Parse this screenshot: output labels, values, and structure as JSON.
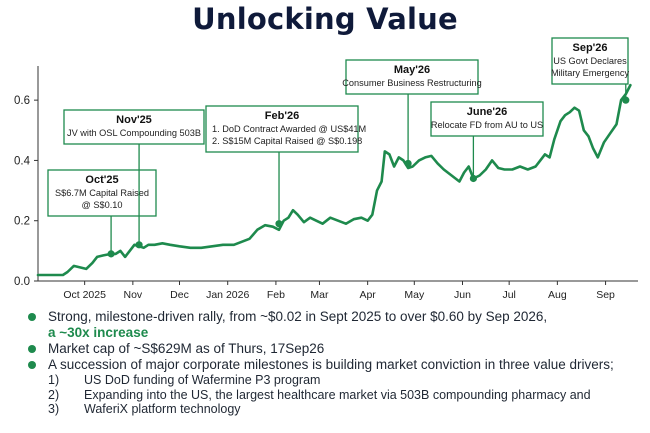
{
  "title": "Unlocking Value",
  "accent_color": "#1e8a4d",
  "chart_data": {
    "type": "line",
    "title": "Unlocking Value",
    "xlabel": "",
    "ylabel": "",
    "ylim": [
      0,
      0.7
    ],
    "yticks": [
      "0.0",
      "0.2",
      "0.4",
      "0.6"
    ],
    "xticks": [
      "Oct 2025",
      "Nov",
      "Dec",
      "Jan 2026",
      "Feb",
      "Mar",
      "Apr",
      "May",
      "Jun",
      "Jul",
      "Aug",
      "Sep"
    ],
    "grid": false,
    "series": [
      {
        "points": [
          [
            "2025-09-01",
            0.02
          ],
          [
            "2025-09-10",
            0.02
          ],
          [
            "2025-09-17",
            0.02
          ],
          [
            "2025-09-20",
            0.03
          ],
          [
            "2025-09-24",
            0.05
          ],
          [
            "2025-09-28",
            0.045
          ],
          [
            "2025-10-02",
            0.04
          ],
          [
            "2025-10-06",
            0.06
          ],
          [
            "2025-10-09",
            0.08
          ],
          [
            "2025-10-13",
            0.085
          ],
          [
            "2025-10-18",
            0.09
          ],
          [
            "2025-10-21",
            0.09
          ],
          [
            "2025-10-24",
            0.1
          ],
          [
            "2025-10-27",
            0.08
          ],
          [
            "2025-10-30",
            0.1
          ],
          [
            "2025-11-02",
            0.12
          ],
          [
            "2025-11-05",
            0.115
          ],
          [
            "2025-11-08",
            0.11
          ],
          [
            "2025-11-11",
            0.12
          ],
          [
            "2025-11-15",
            0.12
          ],
          [
            "2025-11-20",
            0.125
          ],
          [
            "2025-11-25",
            0.12
          ],
          [
            "2025-12-01",
            0.115
          ],
          [
            "2025-12-08",
            0.11
          ],
          [
            "2025-12-15",
            0.11
          ],
          [
            "2025-12-22",
            0.115
          ],
          [
            "2025-12-29",
            0.12
          ],
          [
            "2026-01-05",
            0.12
          ],
          [
            "2026-01-10",
            0.13
          ],
          [
            "2026-01-15",
            0.14
          ],
          [
            "2026-01-20",
            0.17
          ],
          [
            "2026-01-25",
            0.185
          ],
          [
            "2026-01-30",
            0.18
          ],
          [
            "2026-02-03",
            0.17
          ],
          [
            "2026-02-06",
            0.2
          ],
          [
            "2026-02-09",
            0.21
          ],
          [
            "2026-02-12",
            0.235
          ],
          [
            "2026-02-15",
            0.22
          ],
          [
            "2026-02-19",
            0.195
          ],
          [
            "2026-02-23",
            0.21
          ],
          [
            "2026-02-27",
            0.2
          ],
          [
            "2026-03-03",
            0.19
          ],
          [
            "2026-03-08",
            0.21
          ],
          [
            "2026-03-13",
            0.2
          ],
          [
            "2026-03-18",
            0.19
          ],
          [
            "2026-03-23",
            0.205
          ],
          [
            "2026-03-28",
            0.21
          ],
          [
            "2026-04-01",
            0.2
          ],
          [
            "2026-04-04",
            0.22
          ],
          [
            "2026-04-07",
            0.3
          ],
          [
            "2026-04-10",
            0.33
          ],
          [
            "2026-04-12",
            0.43
          ],
          [
            "2026-04-15",
            0.42
          ],
          [
            "2026-04-18",
            0.38
          ],
          [
            "2026-04-21",
            0.41
          ],
          [
            "2026-04-24",
            0.4
          ],
          [
            "2026-04-27",
            0.375
          ],
          [
            "2026-04-30",
            0.38
          ],
          [
            "2026-05-04",
            0.4
          ],
          [
            "2026-05-08",
            0.41
          ],
          [
            "2026-05-12",
            0.415
          ],
          [
            "2026-05-16",
            0.39
          ],
          [
            "2026-05-20",
            0.37
          ],
          [
            "2026-05-25",
            0.35
          ],
          [
            "2026-05-30",
            0.33
          ],
          [
            "2026-06-02",
            0.36
          ],
          [
            "2026-06-05",
            0.38
          ],
          [
            "2026-06-08",
            0.34
          ],
          [
            "2026-06-12",
            0.35
          ],
          [
            "2026-06-16",
            0.37
          ],
          [
            "2026-06-20",
            0.4
          ],
          [
            "2026-06-24",
            0.375
          ],
          [
            "2026-06-28",
            0.37
          ],
          [
            "2026-07-03",
            0.37
          ],
          [
            "2026-07-08",
            0.38
          ],
          [
            "2026-07-13",
            0.37
          ],
          [
            "2026-07-18",
            0.38
          ],
          [
            "2026-07-21",
            0.4
          ],
          [
            "2026-07-24",
            0.42
          ],
          [
            "2026-07-27",
            0.41
          ],
          [
            "2026-07-30",
            0.47
          ],
          [
            "2026-08-03",
            0.53
          ],
          [
            "2026-08-06",
            0.55
          ],
          [
            "2026-08-09",
            0.56
          ],
          [
            "2026-08-12",
            0.575
          ],
          [
            "2026-08-15",
            0.565
          ],
          [
            "2026-08-18",
            0.5
          ],
          [
            "2026-08-21",
            0.48
          ],
          [
            "2026-08-24",
            0.44
          ],
          [
            "2026-08-27",
            0.41
          ],
          [
            "2026-08-31",
            0.46
          ],
          [
            "2026-09-04",
            0.49
          ],
          [
            "2026-09-08",
            0.52
          ],
          [
            "2026-09-11",
            0.6
          ],
          [
            "2026-09-14",
            0.62
          ],
          [
            "2026-09-17",
            0.65
          ]
        ]
      }
    ],
    "annotations": [
      {
        "title": "Oct'25",
        "lines": [
          "S$6.7M Capital Raised",
          "@ S$0.10"
        ],
        "date": "2025-10-18",
        "value": 0.09
      },
      {
        "title": "Nov'25",
        "lines": [
          "JV with OSL Compounding 503B"
        ],
        "date": "2025-11-05",
        "value": 0.12
      },
      {
        "title": "Feb'26",
        "lines": [
          "1.  DoD Contract Awarded @ US$41M",
          "2.  S$15M Capital Raised @ S$0.198"
        ],
        "date": "2026-02-03",
        "value": 0.19
      },
      {
        "title": "May'26",
        "lines": [
          "Consumer Business Restructuring"
        ],
        "date": "2026-04-27",
        "value": 0.39
      },
      {
        "title": "June'26",
        "lines": [
          "Relocate FD from AU to US"
        ],
        "date": "2026-06-08",
        "value": 0.34
      },
      {
        "title": "Sep'26",
        "lines": [
          "US Govt Declares",
          "Military Emergency"
        ],
        "date": "2026-09-14",
        "value": 0.6
      }
    ]
  },
  "bullets": {
    "b1_text": "Strong, milestone-driven rally, from ~$0.02 in Sept 2025 to over $0.60 by Sep 2026,",
    "b1_accent": "a ~30x increase",
    "b2_text": "Market cap of ~S$629M as of Thurs, 17Sep26",
    "b3_text": "A succession of major corporate milestones is building market conviction in three value drivers;",
    "sub_items": [
      {
        "num": "1)",
        "text": "US DoD funding of Wafermine P3 program"
      },
      {
        "num": "2)",
        "text": "Expanding into the US, the largest healthcare market via 503B compounding pharmacy and"
      },
      {
        "num": "3)",
        "text": "WaferiX platform technology"
      }
    ]
  }
}
